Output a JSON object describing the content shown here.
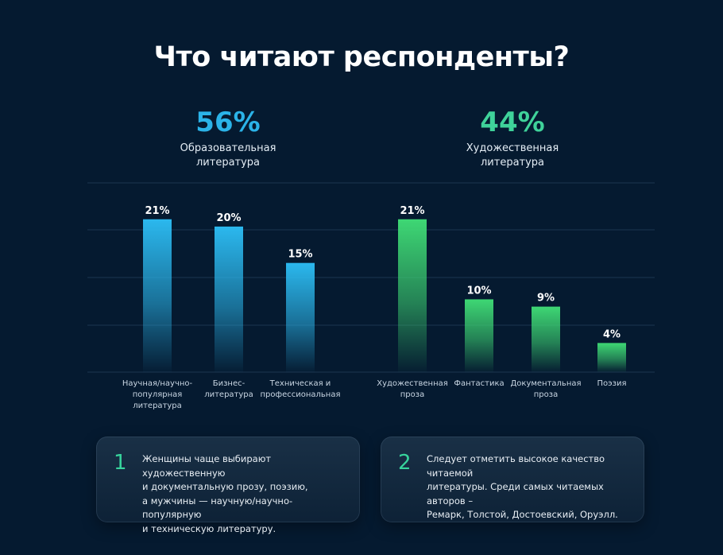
{
  "title": "Что читают респонденты?",
  "groups": [
    {
      "percent": "56%",
      "label_line1": "Образовательная",
      "label_line2": "литература",
      "color": "#2bb3e8"
    },
    {
      "percent": "44%",
      "label_line1": "Художественная",
      "label_line2": "литература",
      "color": "#3fd29a"
    }
  ],
  "chart_data": {
    "type": "bar",
    "ylim": [
      0,
      26
    ],
    "grid": true,
    "series": [
      {
        "group": "Образовательная литература",
        "color": "#2bb8ee",
        "categories": [
          [
            "Научная/научно-",
            "популярная",
            "литература"
          ],
          [
            "Бизнес-",
            "литература"
          ],
          [
            "Техническая и",
            "профессиональная"
          ]
        ],
        "values": [
          21,
          20,
          15
        ],
        "value_labels": [
          "21%",
          "20%",
          "15%"
        ]
      },
      {
        "group": "Художественная литература",
        "color": "#3ed774",
        "categories": [
          [
            "Художественная",
            "проза"
          ],
          [
            "Фантастика"
          ],
          [
            "Документальная",
            "проза"
          ],
          [
            "Поэзия"
          ]
        ],
        "values": [
          21,
          10,
          9,
          4
        ],
        "value_labels": [
          "21%",
          "10%",
          "9%",
          "4%"
        ]
      }
    ]
  },
  "notes": [
    {
      "number": "1",
      "lines": [
        "Женщины чаще выбирают художественную",
        "и документальную прозу, поэзию,",
        "а мужчины — научную/научно-популярную",
        "и техническую литературу."
      ]
    },
    {
      "number": "2",
      "lines": [
        "Следует отметить высокое качество читаемой",
        "литературы. Среди самых читаемых авторов –",
        "Ремарк, Толстой, Достоевский, Оруэлл."
      ]
    }
  ]
}
